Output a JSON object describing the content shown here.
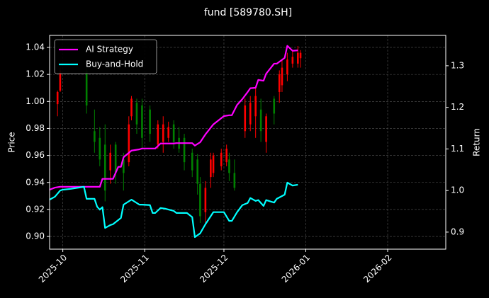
{
  "chart_data": {
    "type": "candlestick",
    "title": "fund [589780.SH]",
    "ylabel": "Price",
    "y2label": "Return",
    "xlim": [
      "2025-09-26",
      "2026-02-23"
    ],
    "xticks": [
      {
        "value": "2025-10-01",
        "label": "2025-10"
      },
      {
        "value": "2025-11-01",
        "label": "2025-11"
      },
      {
        "value": "2025-12-01",
        "label": "2025-12"
      },
      {
        "value": "2026-01-01",
        "label": "2026-01"
      },
      {
        "value": "2026-02-01",
        "label": "2026-02"
      }
    ],
    "ylim": [
      0.8906,
      1.0489
    ],
    "yticks": [
      {
        "value": 0.9,
        "label": "0.90"
      },
      0.92,
      0.94,
      0.96,
      0.98,
      {
        "value": 1,
        "label": "1.00"
      },
      1.02,
      1.04
    ],
    "y2lim": [
      0.859,
      1.373
    ],
    "y2ticks": [
      0.9,
      {
        "value": 1,
        "label": "1.0"
      },
      1.1,
      1.2,
      1.3
    ],
    "grid": true,
    "legend": "upper left",
    "candles": {
      "up_color": "#ff0000",
      "down_color": "#008000",
      "x": [
        "2025-09-29",
        "2025-09-30",
        "2025-10-10",
        "2025-10-13",
        "2025-10-15",
        "2025-10-17",
        "2025-10-19",
        "2025-10-21",
        "2025-10-24",
        "2025-10-26",
        "2025-10-27",
        "2025-10-29",
        "2025-10-31",
        "2025-11-03",
        "2025-11-06",
        "2025-11-08",
        "2025-11-10",
        "2025-11-12",
        "2025-11-14",
        "2025-11-16",
        "2025-11-19",
        "2025-11-21",
        "2025-11-22",
        "2025-11-24",
        "2025-11-26",
        "2025-11-27",
        "2025-11-30",
        "2025-12-02",
        "2025-12-03",
        "2025-12-05",
        "2025-12-09",
        "2025-12-11",
        "2025-12-13",
        "2025-12-15",
        "2025-12-17",
        "2025-12-20",
        "2025-12-22",
        "2025-12-23",
        "2025-12-25",
        "2025-12-27",
        "2025-12-29",
        "2025-12-30"
      ],
      "open": [
        0.998,
        1.008,
        1.023,
        0.978,
        0.973,
        0.968,
        0.949,
        0.968,
        0.957,
        0.955,
        0.989,
        0.999,
        0.997,
        0.994,
        0.968,
        0.97,
        0.973,
        0.983,
        0.973,
        0.973,
        0.962,
        0.957,
        0.939,
        0.918,
        0.944,
        0.947,
        0.952,
        0.955,
        0.957,
        0.947,
        0.978,
        0.983,
        0.989,
        0.994,
        0.97,
        1.002,
        1.007,
        1.012,
        1.02,
        1.028,
        1.028,
        1.032
      ],
      "close": [
        1.007,
        1.023,
        0.997,
        0.97,
        0.957,
        0.934,
        0.962,
        0.947,
        0.947,
        0.983,
        1.002,
        0.983,
        0.973,
        0.976,
        0.983,
        0.983,
        0.981,
        0.97,
        0.965,
        0.955,
        0.949,
        0.939,
        0.915,
        0.936,
        0.957,
        0.96,
        0.962,
        0.965,
        0.947,
        0.936,
        0.997,
        0.999,
        1.004,
        0.978,
        0.989,
        0.991,
        1.02,
        1.025,
        1.031,
        1.033,
        1.036,
        1.036
      ],
      "high": [
        1.008,
        1.025,
        1.025,
        0.994,
        0.981,
        0.983,
        0.968,
        0.97,
        0.962,
        0.989,
        1.004,
        1.002,
        1.002,
        0.997,
        0.986,
        0.989,
        0.985,
        0.986,
        0.981,
        0.976,
        0.965,
        0.961,
        0.944,
        0.941,
        0.962,
        0.962,
        0.965,
        0.968,
        0.962,
        0.957,
        1.002,
        1.004,
        1.01,
        1.002,
        0.991,
        1.004,
        1.023,
        1.031,
        1.036,
        1.038,
        1.041,
        1.038
      ],
      "low": [
        0.989,
        1.007,
        0.991,
        0.962,
        0.952,
        0.926,
        0.939,
        0.939,
        0.934,
        0.952,
        0.986,
        0.976,
        0.965,
        0.97,
        0.965,
        0.962,
        0.97,
        0.965,
        0.962,
        0.949,
        0.944,
        0.931,
        0.91,
        0.91,
        0.936,
        0.944,
        0.949,
        0.952,
        0.941,
        0.934,
        0.973,
        0.978,
        0.973,
        0.97,
        0.962,
        0.983,
        0.999,
        1.007,
        1.015,
        1.025,
        1.025,
        1.025
      ]
    },
    "x": [
      "2025-09-26",
      "2025-09-28",
      "2025-09-30",
      "2025-10-01",
      "2025-10-04",
      "2025-10-09",
      "2025-10-10",
      "2025-10-13",
      "2025-10-14",
      "2025-10-15",
      "2025-10-16",
      "2025-10-17",
      "2025-10-19",
      "2025-10-20",
      "2025-10-22",
      "2025-10-23",
      "2025-10-24",
      "2025-10-27",
      "2025-10-30",
      "2025-10-31",
      "2025-11-03",
      "2025-11-04",
      "2025-11-05",
      "2025-11-07",
      "2025-11-09",
      "2025-11-12",
      "2025-11-13",
      "2025-11-17",
      "2025-11-19",
      "2025-11-20",
      "2025-11-22",
      "2025-11-24",
      "2025-11-27",
      "2025-12-01",
      "2025-12-03",
      "2025-12-04",
      "2025-12-06",
      "2025-12-08",
      "2025-12-10",
      "2025-12-11",
      "2025-12-13",
      "2025-12-14",
      "2025-12-16",
      "2025-12-17",
      "2025-12-20",
      "2025-12-21",
      "2025-12-24",
      "2025-12-25",
      "2025-12-27",
      "2025-12-29"
    ],
    "series": [
      {
        "name": "AI Strategy",
        "color": "#ff00ff",
        "axis": "y2",
        "values": [
          1.002,
          1.007,
          1.009,
          1.009,
          1.009,
          1.009,
          1.009,
          1.009,
          1.009,
          1.009,
          1.028,
          1.028,
          1.028,
          1.028,
          1.057,
          1.057,
          1.08,
          1.096,
          1.099,
          1.101,
          1.101,
          1.101,
          1.101,
          1.113,
          1.113,
          1.113,
          1.114,
          1.114,
          1.114,
          1.108,
          1.116,
          1.135,
          1.159,
          1.179,
          1.181,
          1.181,
          1.206,
          1.22,
          1.237,
          1.246,
          1.247,
          1.266,
          1.264,
          1.281,
          1.305,
          1.305,
          1.319,
          1.348,
          1.336,
          1.337
        ]
      },
      {
        "name": "Buy-and-Hold",
        "color": "#00ffff",
        "axis": "y2",
        "values": [
          0.978,
          0.985,
          1.0,
          1.002,
          1.004,
          1.009,
          0.98,
          0.98,
          0.961,
          0.954,
          0.96,
          0.91,
          0.917,
          0.919,
          0.929,
          0.934,
          0.966,
          0.978,
          0.966,
          0.966,
          0.965,
          0.946,
          0.946,
          0.958,
          0.956,
          0.951,
          0.946,
          0.946,
          0.936,
          0.888,
          0.897,
          0.919,
          0.948,
          0.948,
          0.927,
          0.927,
          0.948,
          0.965,
          0.97,
          0.982,
          0.975,
          0.977,
          0.963,
          0.977,
          0.971,
          0.98,
          0.99,
          1.019,
          1.012,
          1.014
        ]
      }
    ]
  }
}
